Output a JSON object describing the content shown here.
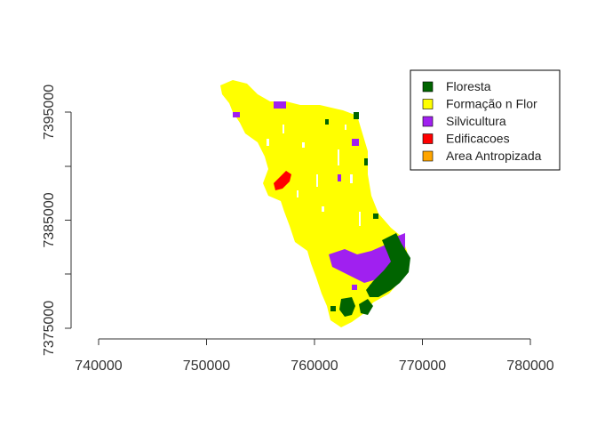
{
  "chart_data": {
    "type": "map",
    "title": "",
    "xlabel": "",
    "ylabel": "",
    "x_ticks": [
      740000,
      750000,
      760000,
      770000,
      780000
    ],
    "x_tick_labels": [
      "740000",
      "750000",
      "760000",
      "770000",
      "780000"
    ],
    "y_ticks": [
      7375000,
      7385000,
      7395000
    ],
    "y_tick_labels": [
      "7375000",
      "7385000",
      "7395000"
    ],
    "xlim": [
      740000,
      780000
    ],
    "ylim": [
      7375000,
      7395000
    ],
    "grid": false,
    "legend_position": "top-right",
    "classes": [
      {
        "name": "Floresta",
        "color": "#006400"
      },
      {
        "name": "Formação n Flor",
        "color": "#ffff00"
      },
      {
        "name": "Silvicultura",
        "color": "#a020f0"
      },
      {
        "name": "Edificacoes",
        "color": "#ff0000"
      },
      {
        "name": "Area Antropizada",
        "color": "#ffa500"
      }
    ]
  }
}
